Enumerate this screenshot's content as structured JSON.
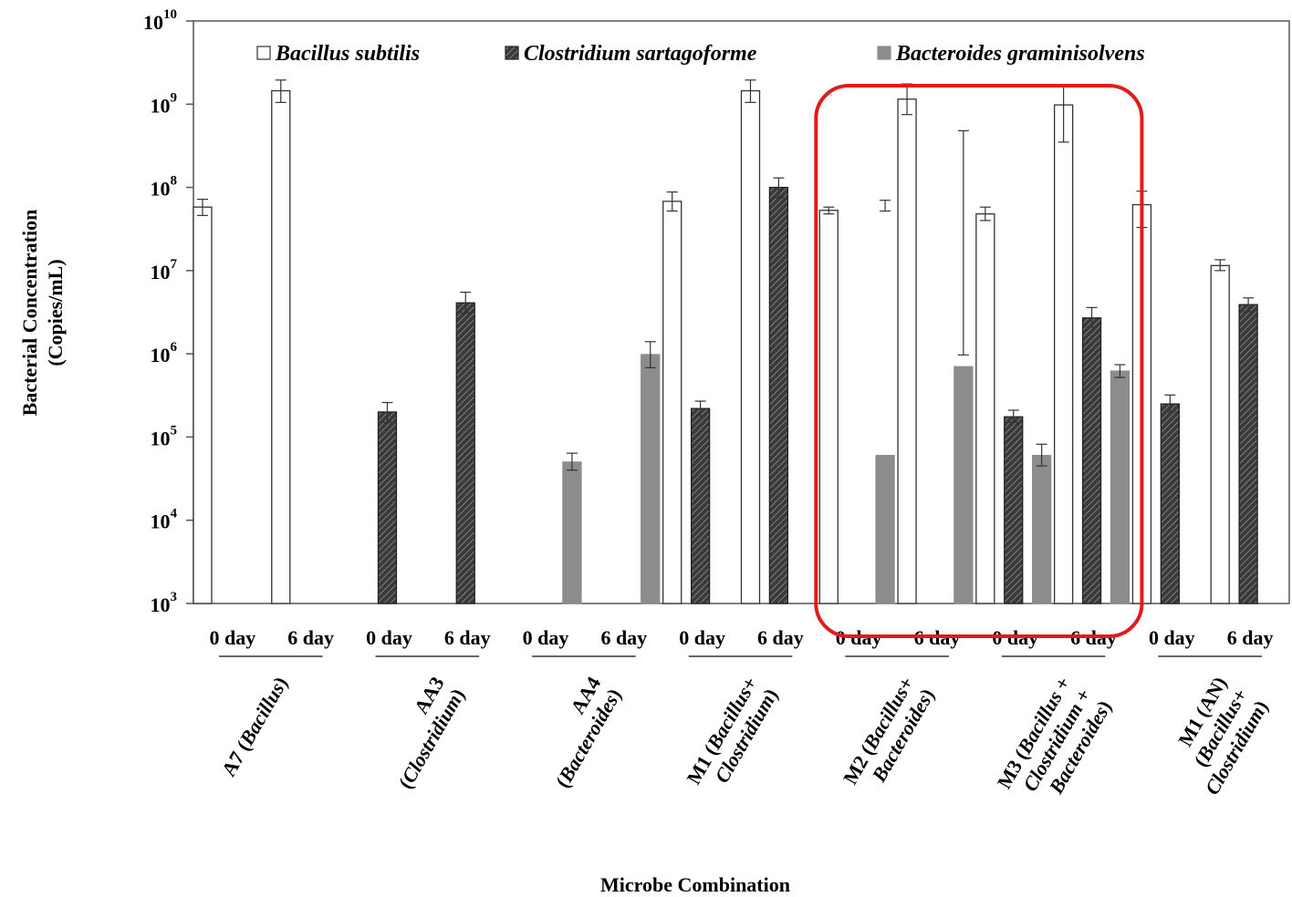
{
  "chart_data": {
    "type": "bar",
    "yscale": "log",
    "ylim": [
      1000,
      10000000000
    ],
    "ylabel": [
      "Bacterial Concentration",
      "(Copies/mL)"
    ],
    "xlabel": "Microbe Combination",
    "y_ticks": [
      {
        "value": 1000,
        "base": "10",
        "exp": "3"
      },
      {
        "value": 10000,
        "base": "10",
        "exp": "4"
      },
      {
        "value": 100000,
        "base": "10",
        "exp": "5"
      },
      {
        "value": 1000000,
        "base": "10",
        "exp": "6"
      },
      {
        "value": 10000000,
        "base": "10",
        "exp": "7"
      },
      {
        "value": 100000000,
        "base": "10",
        "exp": "8"
      },
      {
        "value": 1000000000,
        "base": "10",
        "exp": "9"
      },
      {
        "value": 10000000000,
        "base": "10",
        "exp": "10"
      }
    ],
    "legend_position": "top",
    "series": [
      {
        "name": "Bacillus subtilis",
        "color": "#ffffff",
        "pattern": "none"
      },
      {
        "name": "Clostridium sartagoforme",
        "color": "#3a3a3a",
        "pattern": "hatched"
      },
      {
        "name": "Bacteroides graminisolvens",
        "color": "#8c8c8c",
        "pattern": "none"
      }
    ],
    "day_labels": [
      "0 day",
      "6 day"
    ],
    "groups": [
      {
        "label_lines": [
          [
            {
              "t": "A7 (",
              "i": false
            },
            {
              "t": "Bacillus",
              "i": true
            },
            {
              "t": ")",
              "i": false
            }
          ]
        ],
        "days": [
          {
            "label": "0 day",
            "values": [
              58000000,
              null,
              null
            ],
            "err": [
              [
                46000000,
                72000000
              ],
              null,
              null
            ]
          },
          {
            "label": "6 day",
            "values": [
              1450000000,
              null,
              null
            ],
            "err": [
              [
                1050000000,
                1950000000
              ],
              null,
              null
            ]
          }
        ]
      },
      {
        "label_lines": [
          [
            {
              "t": "AA3",
              "i": false
            }
          ],
          [
            {
              "t": "(",
              "i": false
            },
            {
              "t": "Clostridium",
              "i": true
            },
            {
              "t": ")",
              "i": false
            }
          ]
        ],
        "days": [
          {
            "label": "0 day",
            "values": [
              null,
              200000,
              null
            ],
            "err": [
              null,
              [
                150000,
                260000
              ],
              null
            ]
          },
          {
            "label": "6 day",
            "values": [
              null,
              4100000,
              null
            ],
            "err": [
              null,
              [
                3100000,
                5500000
              ],
              null
            ]
          }
        ]
      },
      {
        "label_lines": [
          [
            {
              "t": "AA4",
              "i": false
            }
          ],
          [
            {
              "t": "(",
              "i": false
            },
            {
              "t": "Bacteroides",
              "i": true
            },
            {
              "t": ")",
              "i": false
            }
          ]
        ],
        "days": [
          {
            "label": "0 day",
            "values": [
              null,
              null,
              50000
            ],
            "err": [
              null,
              null,
              [
                40000,
                64000
              ]
            ]
          },
          {
            "label": "6 day",
            "values": [
              null,
              null,
              980000
            ],
            "err": [
              null,
              null,
              [
                680000,
                1400000
              ]
            ]
          }
        ]
      },
      {
        "label_lines": [
          [
            {
              "t": "M1 (",
              "i": false
            },
            {
              "t": "Bacillus",
              "i": true
            },
            {
              "t": "+",
              "i": false
            }
          ],
          [
            {
              "t": "Clostridium",
              "i": true
            },
            {
              "t": ")",
              "i": false
            }
          ]
        ],
        "days": [
          {
            "label": "0 day",
            "values": [
              68000000,
              220000,
              null
            ],
            "err": [
              [
                52000000,
                88000000
              ],
              [
                180000,
                270000
              ],
              null
            ]
          },
          {
            "label": "6 day",
            "values": [
              1450000000,
              100000000,
              null
            ],
            "err": [
              [
                1050000000,
                1950000000
              ],
              [
                75000000,
                130000000
              ],
              null
            ]
          }
        ]
      },
      {
        "label_lines": [
          [
            {
              "t": "M2 (",
              "i": false
            },
            {
              "t": "Bacillus",
              "i": true
            },
            {
              "t": "+",
              "i": false
            }
          ],
          [
            {
              "t": "Bacteroides",
              "i": true
            },
            {
              "t": ")",
              "i": false
            }
          ]
        ],
        "days": [
          {
            "label": "0 day",
            "values": [
              53000000,
              null,
              60000
            ],
            "err": [
              [
                48000000,
                58000000
              ],
              null,
              [
                52000000,
                70000000
              ]
            ]
          },
          {
            "label": "6 day",
            "values": [
              1150000000,
              null,
              700000
            ],
            "err": [
              [
                750000000,
                1750000000
              ],
              null,
              [
                480000000,
                970000
              ]
            ]
          }
        ]
      },
      {
        "label_lines": [
          [
            {
              "t": "M3 (",
              "i": false
            },
            {
              "t": "Bacillus",
              "i": true
            },
            {
              "t": " +",
              "i": false
            }
          ],
          [
            {
              "t": "Clostridium",
              "i": true
            },
            {
              "t": " +",
              "i": false
            }
          ],
          [
            {
              "t": "Bacteroides",
              "i": true
            },
            {
              "t": ")",
              "i": false
            }
          ]
        ],
        "days": [
          {
            "label": "0 day",
            "values": [
              48000000,
              175000,
              60000
            ],
            "err": [
              [
                40000000,
                58000000
              ],
              [
                150000,
                210000
              ],
              [
                45000,
                82000
              ]
            ]
          },
          {
            "label": "6 day",
            "values": [
              980000000,
              2700000,
              620000
            ],
            "err": [
              [
                350000000,
                1650000000
              ],
              [
                2100000,
                3600000
              ],
              [
                520000,
                740000
              ]
            ]
          }
        ]
      },
      {
        "label_lines": [
          [
            {
              "t": "M1 (AN)",
              "i": false
            }
          ],
          [
            {
              "t": "(",
              "i": false
            },
            {
              "t": "Bacillus",
              "i": true
            },
            {
              "t": "+",
              "i": false
            }
          ],
          [
            {
              "t": "Clostridium",
              "i": true
            },
            {
              "t": ")",
              "i": false
            }
          ]
        ],
        "days": [
          {
            "label": "0 day",
            "values": [
              62000000,
              250000,
              null
            ],
            "err": [
              [
                33000000,
                90000000
              ],
              [
                200000,
                320000
              ],
              null
            ]
          },
          {
            "label": "6 day",
            "values": [
              11500000,
              3900000,
              null
            ],
            "err": [
              [
                10000000,
                13500000
              ],
              [
                3200000,
                4700000
              ],
              null
            ]
          }
        ]
      }
    ],
    "highlight": {
      "color": "#e01b1b",
      "groups": [
        4,
        5
      ]
    }
  }
}
